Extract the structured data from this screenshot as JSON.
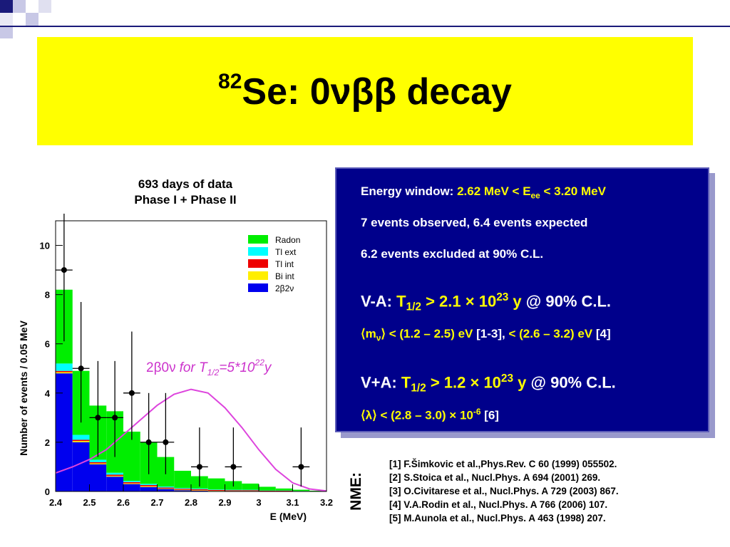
{
  "slide": {
    "title_mass": "82",
    "title_text": "Se: 0νββ decay"
  },
  "chart_data": {
    "type": "bar",
    "title": "693 days of data\nPhase I + Phase II",
    "title_line1": "693 days of data",
    "title_line2": "Phase I + Phase II",
    "xlabel": "E (MeV)",
    "ylabel": "Number of events / 0.05 MeV",
    "xlim": [
      2.4,
      3.2
    ],
    "ylim": [
      0,
      11
    ],
    "x_ticks": [
      "2.4",
      "2.5",
      "2.6",
      "2.7",
      "2.8",
      "2.9",
      "3",
      "3.1",
      "3.2"
    ],
    "y_ticks": [
      "0",
      "2",
      "4",
      "6",
      "8",
      "10"
    ],
    "bin_edges": [
      2.4,
      2.45,
      2.5,
      2.55,
      2.6,
      2.65,
      2.7,
      2.75,
      2.8,
      2.85,
      2.9,
      2.95,
      3.0,
      3.05,
      3.1,
      3.15,
      3.2
    ],
    "series": [
      {
        "name": "2β2ν",
        "color": "#0000ee",
        "values": [
          4.8,
          2.0,
          1.1,
          0.6,
          0.3,
          0.18,
          0.1,
          0.05,
          0.03,
          0.02,
          0.01,
          0.01,
          0.0,
          0.0,
          0.0,
          0.0
        ]
      },
      {
        "name": "Bi int",
        "color": "#ffee00",
        "values": [
          0.05,
          0.05,
          0.04,
          0.03,
          0.03,
          0.03,
          0.02,
          0.02,
          0.02,
          0.01,
          0.01,
          0.01,
          0.01,
          0.01,
          0.0,
          0.0
        ]
      },
      {
        "name": "Tl int",
        "color": "#ee0000",
        "values": [
          0.05,
          0.05,
          0.05,
          0.05,
          0.05,
          0.05,
          0.04,
          0.04,
          0.04,
          0.03,
          0.03,
          0.03,
          0.02,
          0.02,
          0.01,
          0.01
        ]
      },
      {
        "name": "Tl ext",
        "color": "#00ffff",
        "values": [
          0.3,
          0.2,
          0.1,
          0.08,
          0.05,
          0.05,
          0.04,
          0.03,
          0.03,
          0.02,
          0.02,
          0.02,
          0.01,
          0.01,
          0.01,
          0.0
        ]
      },
      {
        "name": "Radon",
        "color": "#00ee00",
        "values": [
          3.0,
          2.6,
          2.2,
          2.5,
          2.0,
          1.7,
          1.2,
          0.7,
          0.5,
          0.45,
          0.35,
          0.25,
          0.15,
          0.08,
          0.05,
          0.02
        ]
      }
    ],
    "data_points": [
      {
        "x": 2.425,
        "y": 9,
        "err": [
          2.9,
          3.6
        ]
      },
      {
        "x": 2.475,
        "y": 5,
        "err": [
          2.2,
          2.7
        ]
      },
      {
        "x": 2.525,
        "y": 3,
        "err": [
          1.6,
          2.3
        ]
      },
      {
        "x": 2.575,
        "y": 3,
        "err": [
          1.6,
          2.3
        ]
      },
      {
        "x": 2.625,
        "y": 4,
        "err": [
          1.9,
          2.5
        ]
      },
      {
        "x": 2.675,
        "y": 2,
        "err": [
          1.3,
          2.0
        ]
      },
      {
        "x": 2.725,
        "y": 2,
        "err": [
          1.3,
          2.0
        ]
      },
      {
        "x": 2.825,
        "y": 1,
        "err": [
          0.8,
          1.6
        ]
      },
      {
        "x": 2.925,
        "y": 1,
        "err": [
          0.8,
          1.6
        ]
      },
      {
        "x": 3.125,
        "y": 1,
        "err": [
          0.8,
          1.6
        ]
      }
    ],
    "signal_curve": {
      "color": "#dd44dd",
      "x": [
        2.4,
        2.45,
        2.5,
        2.55,
        2.6,
        2.65,
        2.7,
        2.75,
        2.8,
        2.85,
        2.9,
        2.95,
        3.0,
        3.05,
        3.1,
        3.15,
        3.2
      ],
      "y": [
        0.75,
        1.0,
        1.3,
        1.7,
        2.3,
        2.9,
        3.5,
        3.95,
        4.15,
        4.0,
        3.4,
        2.6,
        1.7,
        0.9,
        0.35,
        0.1,
        0.02
      ],
      "label_prefix": "2β0ν",
      "label_for": "for T",
      "label_half": "1/2",
      "label_value": "=5*10",
      "label_exp": "22",
      "label_unit": "y"
    },
    "legend_placement": "top-right"
  },
  "panel": {
    "l1_label": "Energy window: ",
    "l1_value_a": "2.62 MeV < E",
    "l1_value_sub": "ee",
    "l1_value_b": " < 3.20 MeV",
    "l2": "7 events observed, 6.4 events expected",
    "l3": "6.2 events excluded at 90% C.L.",
    "va_label": "V-A: ",
    "va_T": "T",
    "va_sub": "1/2",
    "va_value": " > 2.1 × 10",
    "va_exp": "23",
    "va_unit": " y",
    "va_cl": "  @ 90% C.L.",
    "mnu_open": "⟨m",
    "mnu_sub": "ν",
    "mnu_close": "⟩ < (1.2 – 2.5) eV",
    "mnu_ref1": " [1-3], ",
    "mnu_value2": "< (2.6 – 3.2) eV",
    "mnu_ref2": " [4]",
    "vpa_label": "V+A: ",
    "vpa_T": "T",
    "vpa_sub": "1/2",
    "vpa_value": " > 1.2 × 10",
    "vpa_exp": "23",
    "vpa_unit": " y",
    "vpa_cl": " @ 90% C.L.",
    "lambda_value": "⟨λ⟩ < (2.8 – 3.0) × 10",
    "lambda_exp": "-6",
    "lambda_ref": " [6]"
  },
  "refs": {
    "side_label": "NME:",
    "items": [
      "[1] F.Šimkovic et al.,Phys.Rev. C 60 (1999) 055502.",
      "[2] S.Stoica et al., Nucl.Phys. A 694 (2001) 269.",
      "[3] O.Civitarese et al., Nucl.Phys. A 729 (2003) 867.",
      "[4] V.A.Rodin et al., Nucl.Phys. A 766 (2006) 107.",
      "[5] M.Aunola et al., Nucl.Phys. A 463 (1998) 207."
    ]
  },
  "colors": {
    "title_background": "#ffff00",
    "panel_background": "#00008b",
    "highlight_text": "#ffff00"
  }
}
